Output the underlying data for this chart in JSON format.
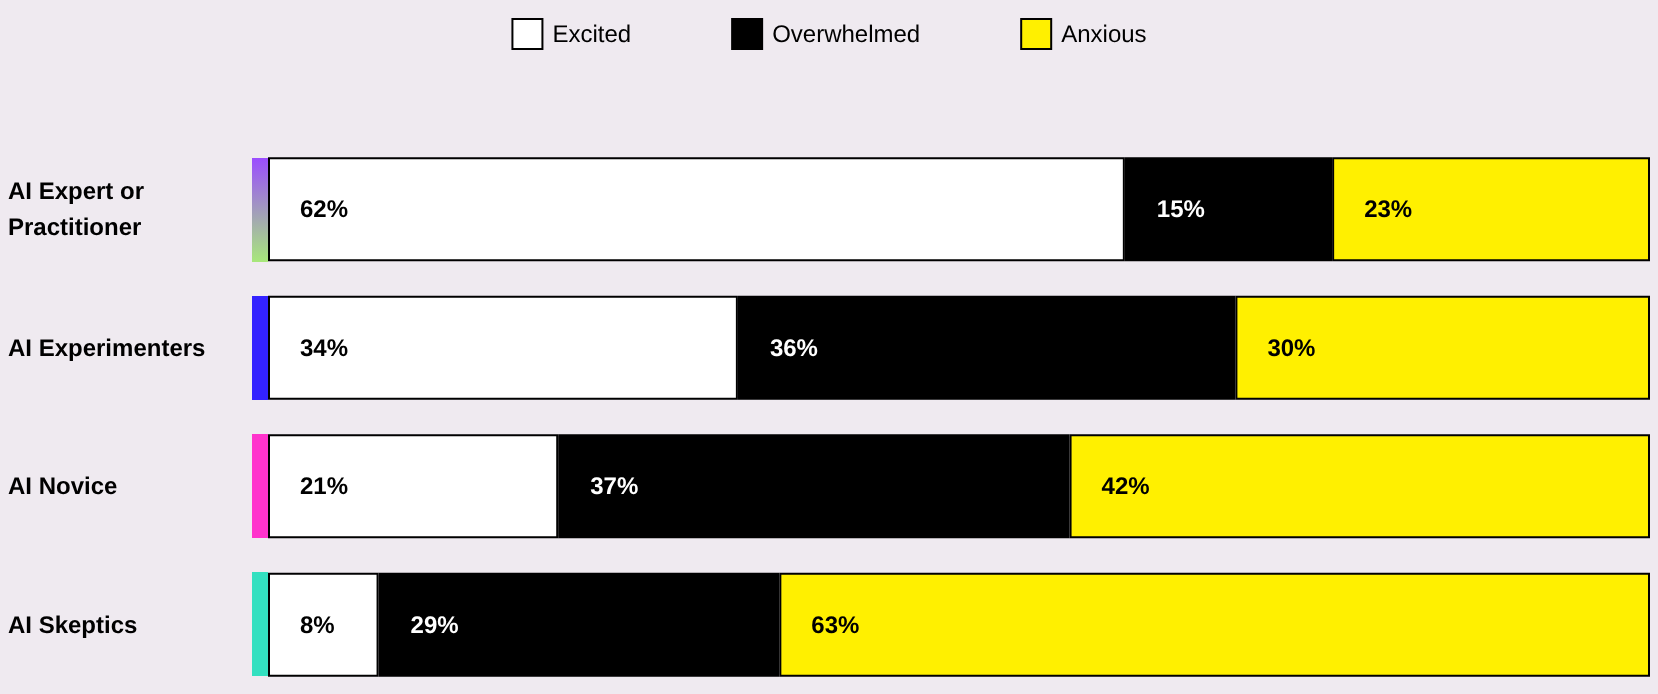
{
  "chart_data": {
    "type": "bar",
    "orientation": "horizontal",
    "stacked": true,
    "legend": "top",
    "categories": [
      "AI Expert or Practitioner",
      "AI Experimenters",
      "AI Novice",
      "AI Skeptics"
    ],
    "series": [
      {
        "name": "Excited",
        "color": "#ffffff",
        "values": [
          62,
          34,
          21,
          8
        ],
        "value_labels": [
          "62%",
          "34%",
          "21%",
          "8%"
        ]
      },
      {
        "name": "Overwhelmed",
        "color": "#000000",
        "values": [
          15,
          36,
          37,
          29
        ],
        "value_labels": [
          "15%",
          "36%",
          "37%",
          "29%"
        ]
      },
      {
        "name": "Anxious",
        "color": "#fff000",
        "values": [
          23,
          30,
          42,
          63
        ],
        "value_labels": [
          "23%",
          "30%",
          "42%",
          "63%"
        ]
      }
    ]
  }
}
